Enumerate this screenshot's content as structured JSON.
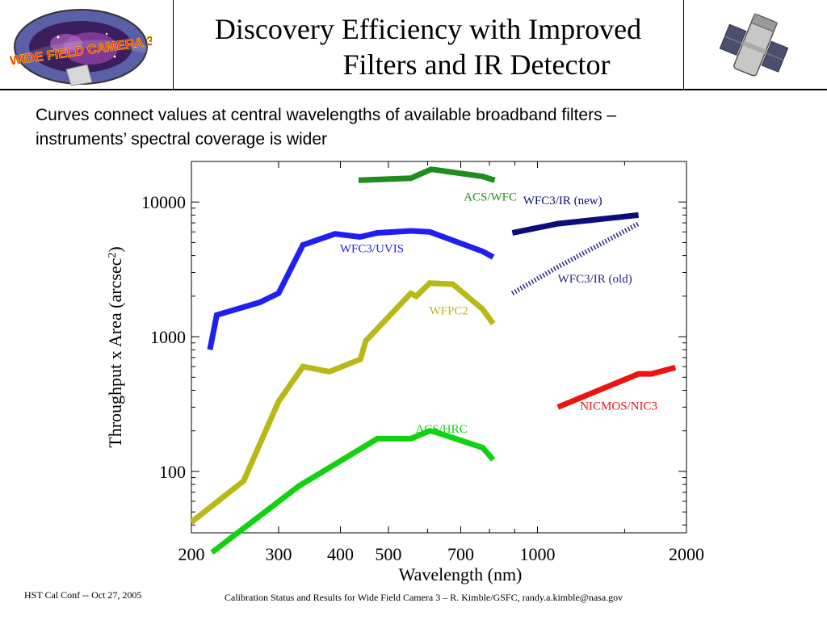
{
  "slide": {
    "title_line1": "Discovery Efficiency with Improved",
    "title_line2": "Filters and IR Detector",
    "subtitle_line1": "Curves connect values at central wavelengths of available broadband filters –",
    "subtitle_line2": "instruments’ spectral coverage is wider",
    "logo_text": "WIDE FIELD CAMERA 3",
    "footer_left": "HST Cal Conf -- Oct 27, 2005",
    "footer_right": "Calibration Status and Results for Wide Field Camera 3 – R. Kimble/GSFC, randy.a.kimble@nasa.gov"
  },
  "chart_data": {
    "type": "line",
    "xlabel": "Wavelength (nm)",
    "ylabel_main": "Throughput x Area (arcsec",
    "ylabel_sup": "2",
    "ylabel_end": ")",
    "x_scale": "log",
    "y_scale": "log",
    "xlim": [
      200,
      2000
    ],
    "ylim": [
      35,
      20000
    ],
    "x_ticks": [
      200,
      300,
      400,
      500,
      700,
      1000,
      2000
    ],
    "y_ticks": [
      100,
      1000,
      10000
    ],
    "grid": false,
    "series": [
      {
        "name": "ACS/WFC",
        "color": "#1e8c1e",
        "dashed": false,
        "points": [
          [
            435,
            14500
          ],
          [
            555,
            15000
          ],
          [
            610,
            17500
          ],
          [
            775,
            15500
          ],
          [
            820,
            14500
          ]
        ]
      },
      {
        "name": "WFC3/UVIS",
        "color": "#1f1ff5",
        "dashed": false,
        "points": [
          [
            218,
            800
          ],
          [
            225,
            1450
          ],
          [
            275,
            1800
          ],
          [
            300,
            2100
          ],
          [
            336,
            4800
          ],
          [
            390,
            5800
          ],
          [
            438,
            5500
          ],
          [
            475,
            5900
          ],
          [
            555,
            6100
          ],
          [
            606,
            6000
          ],
          [
            775,
            4300
          ],
          [
            814,
            3900
          ]
        ]
      },
      {
        "name": "WFC3/IR (new)",
        "color": "#0c0c7a",
        "dashed": false,
        "points": [
          [
            890,
            5900
          ],
          [
            1100,
            6900
          ],
          [
            1600,
            8000
          ]
        ]
      },
      {
        "name": "WFC3/IR (old)",
        "color": "#25258f",
        "dashed": true,
        "points": [
          [
            890,
            2100
          ],
          [
            1100,
            3300
          ],
          [
            1600,
            6900
          ]
        ]
      },
      {
        "name": "WFPC2",
        "color": "#b8b818",
        "dashed": false,
        "points": [
          [
            200,
            42
          ],
          [
            255,
            85
          ],
          [
            300,
            330
          ],
          [
            336,
            600
          ],
          [
            380,
            550
          ],
          [
            439,
            680
          ],
          [
            450,
            930
          ],
          [
            555,
            2100
          ],
          [
            569,
            2000
          ],
          [
            606,
            2500
          ],
          [
            675,
            2450
          ],
          [
            775,
            1600
          ],
          [
            814,
            1250
          ]
        ]
      },
      {
        "name": "ACS/HRC",
        "color": "#11d111",
        "dashed": false,
        "points": [
          [
            220,
            25
          ],
          [
            330,
            78
          ],
          [
            475,
            175
          ],
          [
            555,
            175
          ],
          [
            606,
            200
          ],
          [
            625,
            195
          ],
          [
            775,
            150
          ],
          [
            814,
            122
          ]
        ]
      },
      {
        "name": "NICMOS/NIC3",
        "color": "#ee1212",
        "dashed": false,
        "points": [
          [
            1100,
            300
          ],
          [
            1600,
            530
          ],
          [
            1700,
            530
          ],
          [
            1900,
            590
          ]
        ]
      }
    ]
  }
}
